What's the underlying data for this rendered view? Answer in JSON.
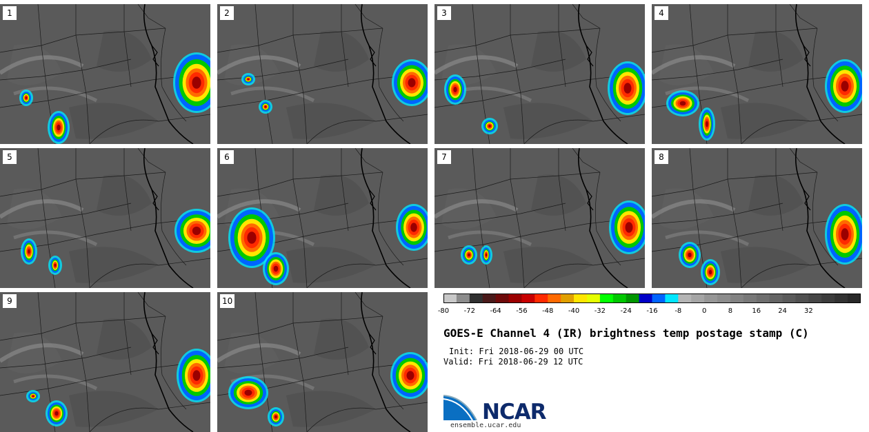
{
  "panels": [
    {
      "label": "1"
    },
    {
      "label": "2"
    },
    {
      "label": "3"
    },
    {
      "label": "4"
    },
    {
      "label": "5"
    },
    {
      "label": "6"
    },
    {
      "label": "7"
    },
    {
      "label": "8"
    },
    {
      "label": "9"
    },
    {
      "label": "10"
    }
  ],
  "colorbar": {
    "colors": [
      "#c8c8c8",
      "#8c8c8c",
      "#303030",
      "#4a1a1a",
      "#6e0a0a",
      "#9b0000",
      "#c80000",
      "#ff2a00",
      "#ff6a00",
      "#e1a000",
      "#ffe600",
      "#e6ff00",
      "#00ff00",
      "#00c800",
      "#009600",
      "#0000c8",
      "#0064ff",
      "#00e6ff",
      "#b4b4b4",
      "#a5a5a5",
      "#969696",
      "#8c8c8c",
      "#828282",
      "#787878",
      "#6e6e6e",
      "#646464",
      "#5a5a5a",
      "#505050",
      "#464646",
      "#3c3c3c",
      "#323232",
      "#282828"
    ],
    "ticks": [
      "-80",
      "-72",
      "-64",
      "-56",
      "-48",
      "-40",
      "-32",
      "-24",
      "-16",
      "-8",
      "0",
      "8",
      "16",
      "24",
      "32"
    ]
  },
  "title": "GOES-E Channel 4 (IR) brightness temp postage stamp (C)",
  "init": "Init: Fri 2018-06-29 00 UTC",
  "valid": "Valid: Fri 2018-06-29 12 UTC",
  "logo": {
    "text": "NCAR",
    "url": "ensemble.ucar.edu",
    "color": "#0d2a6b"
  }
}
